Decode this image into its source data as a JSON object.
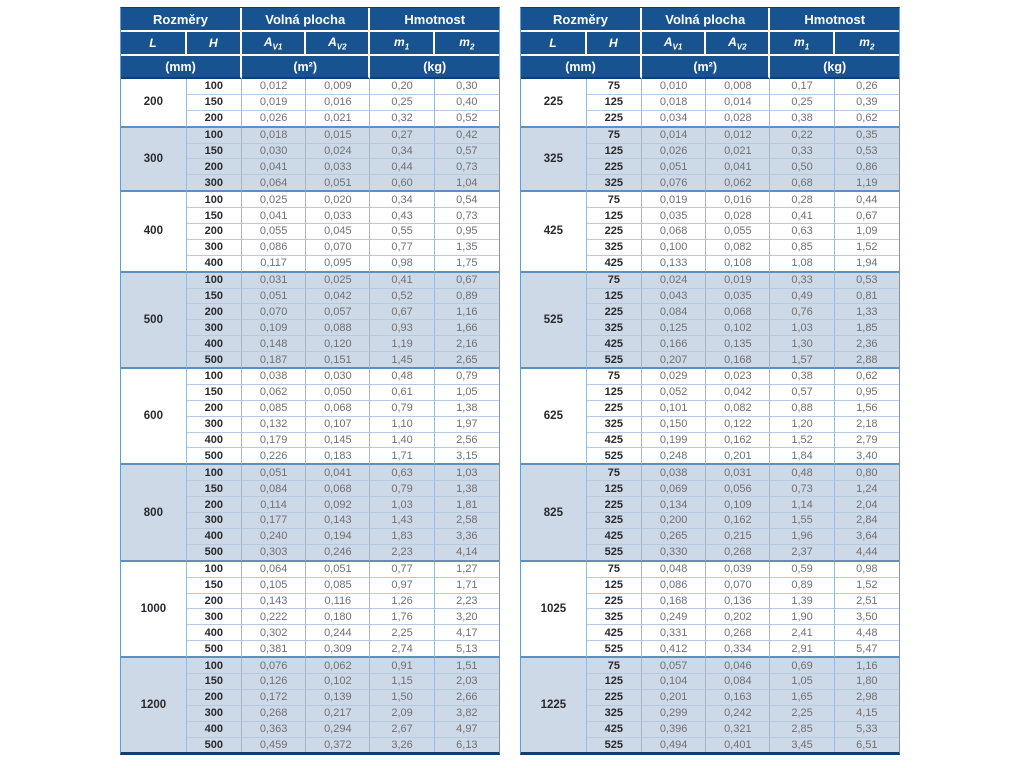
{
  "header": {
    "group_labels": [
      "Rozměry",
      "Volná plocha",
      "Hmotnost"
    ],
    "symbols": [
      {
        "base": "L",
        "sub": ""
      },
      {
        "base": "H",
        "sub": ""
      },
      {
        "base": "A",
        "sub": "V1"
      },
      {
        "base": "A",
        "sub": "V2"
      },
      {
        "base": "m",
        "sub": "1"
      },
      {
        "base": "m",
        "sub": "2"
      }
    ],
    "units": [
      "(mm)",
      "(m²)",
      "(kg)"
    ]
  },
  "colors": {
    "header_bg": "#175390",
    "band_bg": "#cdd9e7",
    "border_light": "#9db9d9",
    "border_group": "#5f8fc1",
    "border_dark": "#123e6b",
    "text_dark": "#2a2a2e",
    "text_value": "#707076"
  },
  "tables": [
    {
      "groups": [
        {
          "l": "200",
          "rows": [
            [
              "100",
              "0,012",
              "0,009",
              "0,20",
              "0,30"
            ],
            [
              "150",
              "0,019",
              "0,016",
              "0,25",
              "0,40"
            ],
            [
              "200",
              "0,026",
              "0,021",
              "0,32",
              "0,52"
            ]
          ]
        },
        {
          "l": "300",
          "rows": [
            [
              "100",
              "0,018",
              "0,015",
              "0,27",
              "0,42"
            ],
            [
              "150",
              "0,030",
              "0,024",
              "0,34",
              "0,57"
            ],
            [
              "200",
              "0,041",
              "0,033",
              "0,44",
              "0,73"
            ],
            [
              "300",
              "0,064",
              "0,051",
              "0,60",
              "1,04"
            ]
          ]
        },
        {
          "l": "400",
          "rows": [
            [
              "100",
              "0,025",
              "0,020",
              "0,34",
              "0,54"
            ],
            [
              "150",
              "0,041",
              "0,033",
              "0,43",
              "0,73"
            ],
            [
              "200",
              "0,055",
              "0,045",
              "0,55",
              "0,95"
            ],
            [
              "300",
              "0,086",
              "0,070",
              "0,77",
              "1,35"
            ],
            [
              "400",
              "0,117",
              "0,095",
              "0,98",
              "1,75"
            ]
          ]
        },
        {
          "l": "500",
          "rows": [
            [
              "100",
              "0,031",
              "0,025",
              "0,41",
              "0,67"
            ],
            [
              "150",
              "0,051",
              "0,042",
              "0,52",
              "0,89"
            ],
            [
              "200",
              "0,070",
              "0,057",
              "0,67",
              "1,16"
            ],
            [
              "300",
              "0,109",
              "0,088",
              "0,93",
              "1,66"
            ],
            [
              "400",
              "0,148",
              "0,120",
              "1,19",
              "2,16"
            ],
            [
              "500",
              "0,187",
              "0,151",
              "1,45",
              "2,65"
            ]
          ]
        },
        {
          "l": "600",
          "rows": [
            [
              "100",
              "0,038",
              "0,030",
              "0,48",
              "0,79"
            ],
            [
              "150",
              "0,062",
              "0,050",
              "0,61",
              "1,05"
            ],
            [
              "200",
              "0,085",
              "0,068",
              "0,79",
              "1,38"
            ],
            [
              "300",
              "0,132",
              "0,107",
              "1,10",
              "1,97"
            ],
            [
              "400",
              "0,179",
              "0,145",
              "1,40",
              "2,56"
            ],
            [
              "500",
              "0,226",
              "0,183",
              "1,71",
              "3,15"
            ]
          ]
        },
        {
          "l": "800",
          "rows": [
            [
              "100",
              "0,051",
              "0,041",
              "0,63",
              "1,03"
            ],
            [
              "150",
              "0,084",
              "0,068",
              "0,79",
              "1,38"
            ],
            [
              "200",
              "0,114",
              "0,092",
              "1,03",
              "1,81"
            ],
            [
              "300",
              "0,177",
              "0,143",
              "1,43",
              "2,58"
            ],
            [
              "400",
              "0,240",
              "0,194",
              "1,83",
              "3,36"
            ],
            [
              "500",
              "0,303",
              "0,246",
              "2,23",
              "4,14"
            ]
          ]
        },
        {
          "l": "1000",
          "rows": [
            [
              "100",
              "0,064",
              "0,051",
              "0,77",
              "1,27"
            ],
            [
              "150",
              "0,105",
              "0,085",
              "0,97",
              "1,71"
            ],
            [
              "200",
              "0,143",
              "0,116",
              "1,26",
              "2,23"
            ],
            [
              "300",
              "0,222",
              "0,180",
              "1,76",
              "3,20"
            ],
            [
              "400",
              "0,302",
              "0,244",
              "2,25",
              "4,17"
            ],
            [
              "500",
              "0,381",
              "0,309",
              "2,74",
              "5,13"
            ]
          ]
        },
        {
          "l": "1200",
          "rows": [
            [
              "100",
              "0,076",
              "0,062",
              "0,91",
              "1,51"
            ],
            [
              "150",
              "0,126",
              "0,102",
              "1,15",
              "2,03"
            ],
            [
              "200",
              "0,172",
              "0,139",
              "1,50",
              "2,66"
            ],
            [
              "300",
              "0,268",
              "0,217",
              "2,09",
              "3,82"
            ],
            [
              "400",
              "0,363",
              "0,294",
              "2,67",
              "4,97"
            ],
            [
              "500",
              "0,459",
              "0,372",
              "3,26",
              "6,13"
            ]
          ]
        }
      ]
    },
    {
      "groups": [
        {
          "l": "225",
          "rows": [
            [
              "75",
              "0,010",
              "0,008",
              "0,17",
              "0,26"
            ],
            [
              "125",
              "0,018",
              "0,014",
              "0,25",
              "0,39"
            ],
            [
              "225",
              "0,034",
              "0,028",
              "0,38",
              "0,62"
            ]
          ]
        },
        {
          "l": "325",
          "rows": [
            [
              "75",
              "0,014",
              "0,012",
              "0,22",
              "0,35"
            ],
            [
              "125",
              "0,026",
              "0,021",
              "0,33",
              "0,53"
            ],
            [
              "225",
              "0,051",
              "0,041",
              "0,50",
              "0,86"
            ],
            [
              "325",
              "0,076",
              "0,062",
              "0,68",
              "1,19"
            ]
          ]
        },
        {
          "l": "425",
          "rows": [
            [
              "75",
              "0,019",
              "0,016",
              "0,28",
              "0,44"
            ],
            [
              "125",
              "0,035",
              "0,028",
              "0,41",
              "0,67"
            ],
            [
              "225",
              "0,068",
              "0,055",
              "0,63",
              "1,09"
            ],
            [
              "325",
              "0,100",
              "0,082",
              "0,85",
              "1,52"
            ],
            [
              "425",
              "0,133",
              "0,108",
              "1,08",
              "1,94"
            ]
          ]
        },
        {
          "l": "525",
          "rows": [
            [
              "75",
              "0,024",
              "0,019",
              "0,33",
              "0,53"
            ],
            [
              "125",
              "0,043",
              "0,035",
              "0,49",
              "0,81"
            ],
            [
              "225",
              "0,084",
              "0,068",
              "0,76",
              "1,33"
            ],
            [
              "325",
              "0,125",
              "0,102",
              "1,03",
              "1,85"
            ],
            [
              "425",
              "0,166",
              "0,135",
              "1,30",
              "2,36"
            ],
            [
              "525",
              "0,207",
              "0,168",
              "1,57",
              "2,88"
            ]
          ]
        },
        {
          "l": "625",
          "rows": [
            [
              "75",
              "0,029",
              "0,023",
              "0,38",
              "0,62"
            ],
            [
              "125",
              "0,052",
              "0,042",
              "0,57",
              "0,95"
            ],
            [
              "225",
              "0,101",
              "0,082",
              "0,88",
              "1,56"
            ],
            [
              "325",
              "0,150",
              "0,122",
              "1,20",
              "2,18"
            ],
            [
              "425",
              "0,199",
              "0,162",
              "1,52",
              "2,79"
            ],
            [
              "525",
              "0,248",
              "0,201",
              "1,84",
              "3,40"
            ]
          ]
        },
        {
          "l": "825",
          "rows": [
            [
              "75",
              "0,038",
              "0,031",
              "0,48",
              "0,80"
            ],
            [
              "125",
              "0,069",
              "0,056",
              "0,73",
              "1,24"
            ],
            [
              "225",
              "0,134",
              "0,109",
              "1,14",
              "2,04"
            ],
            [
              "325",
              "0,200",
              "0,162",
              "1,55",
              "2,84"
            ],
            [
              "425",
              "0,265",
              "0,215",
              "1,96",
              "3,64"
            ],
            [
              "525",
              "0,330",
              "0,268",
              "2,37",
              "4,44"
            ]
          ]
        },
        {
          "l": "1025",
          "rows": [
            [
              "75",
              "0,048",
              "0,039",
              "0,59",
              "0,98"
            ],
            [
              "125",
              "0,086",
              "0,070",
              "0,89",
              "1,52"
            ],
            [
              "225",
              "0,168",
              "0,136",
              "1,39",
              "2,51"
            ],
            [
              "325",
              "0,249",
              "0,202",
              "1,90",
              "3,50"
            ],
            [
              "425",
              "0,331",
              "0,268",
              "2,41",
              "4,48"
            ],
            [
              "525",
              "0,412",
              "0,334",
              "2,91",
              "5,47"
            ]
          ]
        },
        {
          "l": "1225",
          "rows": [
            [
              "75",
              "0,057",
              "0,046",
              "0,69",
              "1,16"
            ],
            [
              "125",
              "0,104",
              "0,084",
              "1,05",
              "1,80"
            ],
            [
              "225",
              "0,201",
              "0,163",
              "1,65",
              "2,98"
            ],
            [
              "325",
              "0,299",
              "0,242",
              "2,25",
              "4,15"
            ],
            [
              "425",
              "0,396",
              "0,321",
              "2,85",
              "5,33"
            ],
            [
              "525",
              "0,494",
              "0,401",
              "3,45",
              "6,51"
            ]
          ]
        }
      ]
    }
  ]
}
